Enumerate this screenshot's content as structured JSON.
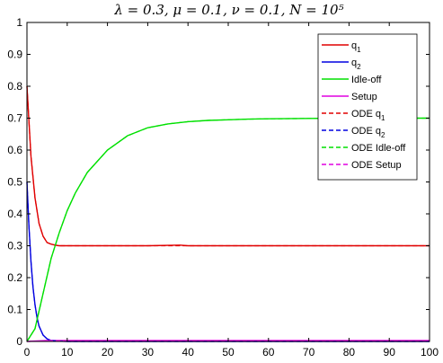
{
  "chart_data": {
    "type": "line",
    "title": "λ = 0.3, μ = 0.1, ν = 0.1, N = 10⁵",
    "xlabel": "",
    "ylabel": "",
    "xlim": [
      0,
      100
    ],
    "ylim": [
      0,
      1
    ],
    "xticks": [
      0,
      10,
      20,
      30,
      40,
      50,
      60,
      70,
      80,
      90,
      100
    ],
    "yticks": [
      0,
      0.1,
      0.2,
      0.3,
      0.4,
      0.5,
      0.6,
      0.7,
      0.8,
      0.9,
      1
    ],
    "legend_position": "top-right",
    "grid": false,
    "series": [
      {
        "name": "q1",
        "label_main": "q",
        "label_sub": "1",
        "color": "#e00000",
        "dash": "solid",
        "x": [
          0,
          1,
          2,
          3,
          4,
          5,
          6,
          7,
          8,
          10,
          15,
          20,
          30,
          38,
          40,
          50,
          60,
          70,
          80,
          90,
          100
        ],
        "y": [
          0.8,
          0.58,
          0.45,
          0.37,
          0.33,
          0.31,
          0.305,
          0.302,
          0.3,
          0.3,
          0.3,
          0.3,
          0.3,
          0.302,
          0.3,
          0.3,
          0.3,
          0.3,
          0.3,
          0.3,
          0.3
        ]
      },
      {
        "name": "q2",
        "label_main": "q",
        "label_sub": "2",
        "color": "#0000e0",
        "dash": "solid",
        "x": [
          0,
          0.5,
          1,
          1.5,
          2,
          2.5,
          3,
          4,
          5,
          6,
          8,
          10,
          100
        ],
        "y": [
          0.5,
          0.36,
          0.25,
          0.17,
          0.115,
          0.075,
          0.048,
          0.02,
          0.008,
          0.003,
          0.001,
          0,
          0
        ]
      },
      {
        "name": "Idle-off",
        "label_main": "Idle-off",
        "label_sub": "",
        "color": "#00e000",
        "dash": "solid",
        "x": [
          0,
          2,
          4,
          6,
          8,
          10,
          12,
          15,
          20,
          25,
          30,
          35,
          40,
          45,
          50,
          55,
          60,
          70,
          80,
          90,
          100
        ],
        "y": [
          0,
          0.04,
          0.15,
          0.26,
          0.34,
          0.41,
          0.465,
          0.53,
          0.6,
          0.645,
          0.67,
          0.682,
          0.689,
          0.693,
          0.695,
          0.697,
          0.698,
          0.699,
          0.7,
          0.7,
          0.7
        ]
      },
      {
        "name": "Setup",
        "label_main": "Setup",
        "label_sub": "",
        "color": "#e000e0",
        "dash": "solid",
        "x": [
          0,
          5,
          10,
          20,
          40,
          60,
          80,
          100
        ],
        "y": [
          0,
          0.003,
          0.003,
          0.003,
          0.003,
          0.003,
          0.003,
          0.003
        ]
      },
      {
        "name": "ODE q1",
        "label_main": "ODE q",
        "label_sub": "1",
        "color": "#e00000",
        "dash": "dashed",
        "x": [
          0,
          1,
          2,
          3,
          4,
          5,
          6,
          7,
          8,
          10,
          15,
          20,
          40,
          60,
          80,
          100
        ],
        "y": [
          0.8,
          0.58,
          0.45,
          0.37,
          0.33,
          0.31,
          0.305,
          0.302,
          0.3,
          0.3,
          0.3,
          0.3,
          0.3,
          0.3,
          0.3,
          0.3
        ]
      },
      {
        "name": "ODE q2",
        "label_main": "ODE q",
        "label_sub": "2",
        "color": "#0000e0",
        "dash": "dashed",
        "x": [
          0,
          0.5,
          1,
          1.5,
          2,
          2.5,
          3,
          4,
          5,
          6,
          8,
          10,
          100
        ],
        "y": [
          0.5,
          0.36,
          0.25,
          0.17,
          0.115,
          0.075,
          0.048,
          0.02,
          0.008,
          0.003,
          0.001,
          0,
          0
        ]
      },
      {
        "name": "ODE Idle-off",
        "label_main": "ODE Idle-off",
        "label_sub": "",
        "color": "#00e000",
        "dash": "dashed",
        "x": [
          0,
          2,
          4,
          6,
          8,
          10,
          12,
          15,
          20,
          25,
          30,
          35,
          40,
          45,
          50,
          55,
          60,
          70,
          80,
          90,
          100
        ],
        "y": [
          0,
          0.04,
          0.15,
          0.26,
          0.34,
          0.41,
          0.465,
          0.53,
          0.6,
          0.645,
          0.67,
          0.682,
          0.689,
          0.693,
          0.695,
          0.697,
          0.698,
          0.699,
          0.7,
          0.7,
          0.7
        ]
      },
      {
        "name": "ODE Setup",
        "label_main": "ODE Setup",
        "label_sub": "",
        "color": "#e000e0",
        "dash": "dashed",
        "x": [
          0,
          5,
          10,
          20,
          40,
          60,
          80,
          100
        ],
        "y": [
          0,
          0.002,
          0.002,
          0.002,
          0.002,
          0.002,
          0.002,
          0.002
        ]
      }
    ]
  }
}
